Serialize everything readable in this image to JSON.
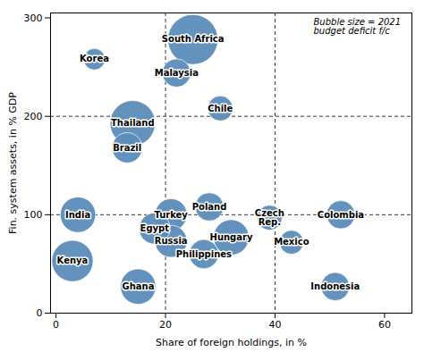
{
  "chart_data": {
    "type": "scatter",
    "x_label": "Share of foreign holdings, in %",
    "y_label": "Fin. system assets, in % GDP",
    "annotation": "Bubble size = 2021\nbudget deficit f/c",
    "color": "#5b8db8",
    "points": [
      {
        "label": "Korea",
        "x": 7,
        "y": 258,
        "size": 400
      },
      {
        "label": "South Africa",
        "x": 25,
        "y": 278,
        "size": 2200
      },
      {
        "label": "Malaysia",
        "x": 22,
        "y": 244,
        "size": 700
      },
      {
        "label": "Thailand",
        "x": 14,
        "y": 193,
        "size": 1800
      },
      {
        "label": "Chile",
        "x": 30,
        "y": 208,
        "size": 550
      },
      {
        "label": "Brazil",
        "x": 13,
        "y": 168,
        "size": 800
      },
      {
        "label": "India",
        "x": 4,
        "y": 100,
        "size": 1100
      },
      {
        "label": "Turkey",
        "x": 21,
        "y": 100,
        "size": 900
      },
      {
        "label": "Poland",
        "x": 28,
        "y": 108,
        "size": 700
      },
      {
        "label": "Egypt",
        "x": 18,
        "y": 86,
        "size": 850
      },
      {
        "label": "Czech\nRep.",
        "x": 39,
        "y": 97,
        "size": 550
      },
      {
        "label": "Colombia",
        "x": 52,
        "y": 100,
        "size": 700
      },
      {
        "label": "Kenya",
        "x": 3,
        "y": 53,
        "size": 1500
      },
      {
        "label": "Russia",
        "x": 21,
        "y": 73,
        "size": 900
      },
      {
        "label": "Hungary",
        "x": 32,
        "y": 77,
        "size": 1100
      },
      {
        "label": "Mexico",
        "x": 43,
        "y": 72,
        "size": 500
      },
      {
        "label": "Philippines",
        "x": 27,
        "y": 60,
        "size": 750
      },
      {
        "label": "Ghana",
        "x": 15,
        "y": 27,
        "size": 1100
      },
      {
        "label": "Indonesia",
        "x": 51,
        "y": 27,
        "size": 700
      }
    ],
    "dashed_x": [
      20,
      40
    ],
    "dashed_y": [
      100,
      200
    ],
    "xlim": [
      -1,
      65
    ],
    "ylim": [
      0,
      305
    ],
    "xticks": [
      0,
      20,
      40,
      60
    ],
    "yticks": [
      0,
      100,
      200,
      300
    ],
    "grid": false
  }
}
